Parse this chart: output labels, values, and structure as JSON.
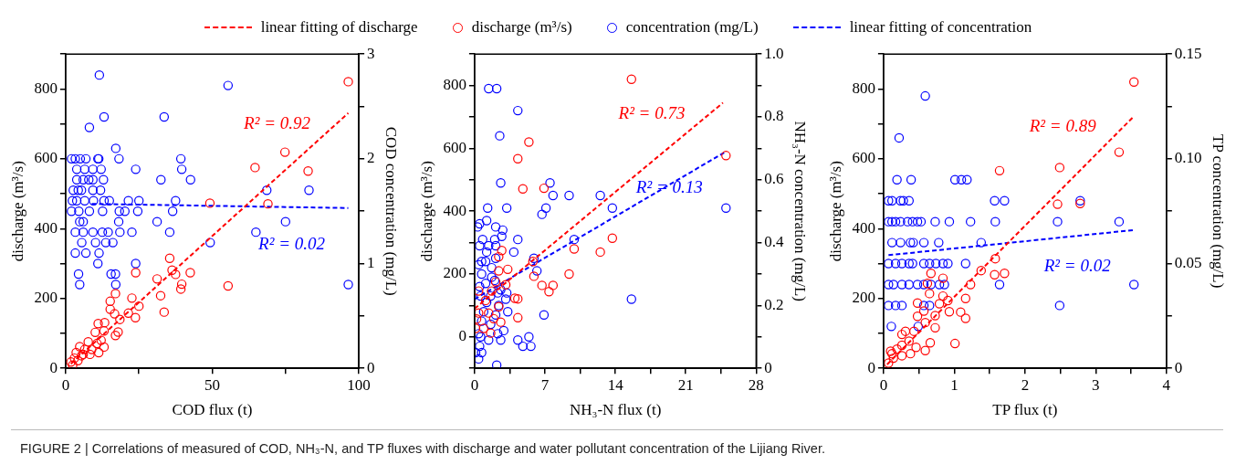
{
  "chart_data": [
    {
      "type": "scatter",
      "xlabel": "COD flux (t)",
      "ylabel": "discharge (m³/s)",
      "y2label": "COD concentration (mg/L)",
      "legend": "top",
      "line_style": "dashed",
      "xlim": [
        0,
        100
      ],
      "xticks": [
        0,
        {
          "value": 25,
          "label": null
        },
        50,
        {
          "value": 75,
          "label": null
        },
        100
      ],
      "ylim": [
        0,
        900
      ],
      "yticks": [
        0,
        {
          "value": 100,
          "label": null
        },
        200,
        {
          "value": 300,
          "label": null
        },
        400,
        {
          "value": 500,
          "label": null
        },
        600,
        {
          "value": 700,
          "label": null
        },
        800,
        {
          "value": 900,
          "label": null
        }
      ],
      "y2lim": [
        0,
        3
      ],
      "y2ticks": [
        0,
        {
          "value": 0.5,
          "label": null
        },
        1,
        {
          "value": 1.5,
          "label": null
        },
        2,
        {
          "value": 2.5,
          "label": null
        },
        3
      ],
      "series": [
        {
          "name": "linear fitting of discharge",
          "type": "line",
          "marker": "none",
          "color": "#ff0000",
          "x": [
            1.8,
            96.4
          ],
          "values": [
            13,
            731
          ]
        },
        {
          "name": "discharge (m³/s)",
          "marker": "circle",
          "color": "#ff0000",
          "x": [
            96.4,
            74.8,
            64.6,
            82.7,
            49.2,
            69.0,
            35.5,
            23.9,
            36.3,
            42.5,
            31.2,
            37.5,
            39.6,
            39.3,
            55.4,
            32.4,
            33.6,
            22.6,
            25.0,
            23.8,
            15.2,
            17.0,
            15.2,
            18.5,
            16.7,
            21.4,
            13.3,
            11.1,
            17.9,
            17.0,
            13.1,
            10.1,
            12.1,
            13.1,
            7.7,
            4.8,
            6.5,
            10.7,
            8.9,
            11.3,
            3.6,
            6.0,
            3.0,
            1.8,
            2.4,
            4.2,
            5.4,
            8.3
          ],
          "values": [
            821,
            619,
            575,
            565,
            473,
            471,
            315,
            274,
            281,
            274,
            256,
            269,
            241,
            227,
            236,
            208,
            161,
            201,
            178,
            145,
            169,
            214,
            192,
            140,
            156,
            158,
            131,
            128,
            104,
            94,
            107,
            103,
            80,
            61,
            76,
            62,
            54,
            71,
            54,
            45,
            45,
            40,
            29,
            18,
            9,
            22,
            36,
            40
          ]
        },
        {
          "name": "concentration (mg/L)",
          "marker": "circle",
          "axis": "y2",
          "color": "#0000ff",
          "x": [
            11.5,
            55.4,
            13.1,
            33.6,
            8.1,
            17.1,
            2.0,
            3.3,
            5.0,
            6.9,
            11.0,
            11.3,
            18.2,
            39.3,
            3.8,
            6.5,
            9.3,
            12.1,
            23.9,
            39.6,
            3.8,
            6.0,
            7.9,
            9.3,
            12.9,
            32.5,
            42.6,
            2.6,
            4.3,
            5.4,
            9.3,
            11.9,
            68.6,
            83.0,
            2.3,
            3.8,
            6.5,
            9.5,
            13.1,
            14.9,
            21.4,
            25.0,
            37.5,
            2.0,
            4.5,
            8.1,
            12.6,
            18.3,
            20.2,
            24.6,
            36.5,
            4.8,
            6.0,
            18.1,
            31.2,
            75.0,
            3.3,
            6.0,
            9.3,
            12.5,
            14.5,
            18.5,
            22.6,
            35.5,
            64.9,
            5.5,
            10.2,
            13.7,
            16.1,
            49.3,
            3.3,
            6.9,
            11.4,
            11.0,
            23.9,
            4.4,
            15.5,
            17.0,
            4.8,
            17.1,
            96.4
          ],
          "values": [
            2.8,
            2.7,
            2.4,
            2.4,
            2.3,
            2.1,
            2.0,
            2.0,
            2.0,
            2.0,
            2.0,
            2.0,
            2.0,
            2.0,
            1.9,
            1.9,
            1.9,
            1.9,
            1.9,
            1.9,
            1.8,
            1.8,
            1.8,
            1.8,
            1.8,
            1.8,
            1.8,
            1.7,
            1.7,
            1.7,
            1.7,
            1.7,
            1.7,
            1.7,
            1.6,
            1.6,
            1.6,
            1.6,
            1.6,
            1.6,
            1.6,
            1.6,
            1.6,
            1.5,
            1.5,
            1.5,
            1.5,
            1.5,
            1.5,
            1.5,
            1.5,
            1.4,
            1.4,
            1.4,
            1.4,
            1.4,
            1.3,
            1.3,
            1.3,
            1.3,
            1.3,
            1.3,
            1.3,
            1.3,
            1.3,
            1.2,
            1.2,
            1.2,
            1.2,
            1.2,
            1.1,
            1.1,
            1.1,
            1.0,
            1.0,
            0.9,
            0.9,
            0.9,
            0.8,
            0.8,
            0.8
          ]
        },
        {
          "name": "linear fitting of concentration",
          "type": "line",
          "marker": "none",
          "axis": "y2",
          "color": "#0000ff",
          "x": [
            8.9,
            96.4
          ],
          "values": [
            1.57,
            1.53
          ]
        }
      ],
      "annotations": [
        "R² = 0.92",
        "R² = 0.02",
        "FIGURE 2 | Correlations of measured of COD, NH₃-N, and TP fluxes with discharge and water pollutant concentration of the Lijiang River."
      ]
    },
    {
      "type": "scatter",
      "xlabel": "NH₃-N flux (t)",
      "ylabel": "discharge (m³/s)",
      "y2label": "NH₃-N concentration (mg/L)",
      "line_style": "dashed",
      "xlim": [
        0,
        28
      ],
      "xticks": [
        0,
        {
          "value": 3.5,
          "label": null
        },
        7,
        {
          "value": 10.5,
          "label": null
        },
        14,
        {
          "value": 17.5,
          "label": null
        },
        21,
        {
          "value": 24.5,
          "label": null
        },
        28
      ],
      "ylim": [
        -100,
        900
      ],
      "yticks": [
        {
          "value": -100,
          "label": null
        },
        0,
        {
          "value": 100,
          "label": null
        },
        200,
        {
          "value": 300,
          "label": null
        },
        400,
        {
          "value": 500,
          "label": null
        },
        600,
        {
          "value": 700,
          "label": null
        },
        800,
        {
          "value": 900,
          "label": null
        }
      ],
      "y2lim": [
        0,
        1
      ],
      "y2ticks": [
        0,
        {
          "value": 0.1,
          "label": null
        },
        0.2,
        {
          "value": 0.3,
          "label": null
        },
        0.4,
        {
          "value": 0.5,
          "label": null
        },
        0.6,
        {
          "value": 0.7,
          "label": null
        },
        0.8,
        {
          "value": 0.9,
          "label": null
        },
        {
          "value": 1,
          "label": "1.0"
        }
      ],
      "series": [
        {
          "type": "line",
          "marker": "none",
          "color": "#ff0000",
          "x": [
            0,
            24.7
          ],
          "values": [
            90,
            745
          ]
        },
        {
          "marker": "circle",
          "color": "#ff0000",
          "x": [
            15.6,
            25.0,
            5.4,
            4.3,
            4.8,
            6.9,
            2.7,
            3.3,
            13.7,
            12.5,
            9.9,
            9.4,
            5.8,
            5.9,
            6.7,
            7.8,
            7.4,
            4.0,
            4.3,
            4.3,
            2.4,
            2.4,
            2.1,
            3.1,
            1.7,
            0.4,
            1.1,
            2.4,
            1.4,
            0.4,
            1.9,
            2.6,
            0.2,
            0.9,
            1.6,
            0.1
          ],
          "values": [
            820,
            577,
            620,
            567,
            471,
            473,
            275,
            215,
            314,
            270,
            280,
            200,
            240,
            193,
            164,
            164,
            144,
            123,
            121,
            61,
            255,
            210,
            175,
            166,
            146,
            146,
            116,
            96,
            76,
            76,
            58,
            47,
            57,
            27,
            12,
            27
          ]
        },
        {
          "marker": "circle",
          "axis": "y2",
          "color": "#0000ff",
          "x": [
            1.4,
            2.2,
            4.3,
            2.5,
            2.6,
            7.5,
            7.8,
            9.4,
            12.5,
            13.7,
            7.1,
            6.7,
            1.3,
            3.2,
            25.0,
            0.5,
            0.3,
            1.2,
            2.1,
            2.8,
            2.7,
            2.0,
            0.8,
            4.3,
            0.5,
            1.4,
            2.1,
            1.2,
            3.9,
            9.9,
            2.1,
            5.9,
            6.2,
            0.4,
            0.7,
            1.7,
            1.1,
            1.7,
            0.7,
            2.0,
            1.1,
            0.5,
            2.6,
            3.2,
            2.3,
            1.6,
            3.1,
            0.6,
            1.2,
            2.4,
            3.3,
            0.9,
            15.6,
            6.9,
            2.1,
            0.7,
            1.6,
            2.9,
            0.4,
            2.3,
            1.4,
            2.6,
            4.3,
            5.4,
            4.8,
            5.6,
            0.6,
            0.5,
            0.7,
            0.1,
            0.4,
            2.2
          ],
          "values": [
            0.89,
            0.89,
            0.82,
            0.74,
            0.59,
            0.59,
            0.55,
            0.55,
            0.55,
            0.51,
            0.51,
            0.49,
            0.51,
            0.51,
            0.51,
            0.46,
            0.45,
            0.47,
            0.45,
            0.44,
            0.42,
            0.41,
            0.41,
            0.41,
            0.39,
            0.39,
            0.39,
            0.37,
            0.37,
            0.41,
            0.35,
            0.35,
            0.31,
            0.33,
            0.34,
            0.32,
            0.34,
            0.29,
            0.3,
            0.28,
            0.27,
            0.26,
            0.25,
            0.24,
            0.24,
            0.23,
            0.22,
            0.23,
            0.21,
            0.2,
            0.18,
            0.18,
            0.22,
            0.17,
            0.17,
            0.15,
            0.14,
            0.12,
            0.11,
            0.11,
            0.09,
            0.09,
            0.09,
            0.1,
            0.07,
            0.07,
            0.1,
            0.07,
            0.05,
            0.05,
            0.03,
            0.01
          ]
        },
        {
          "type": "line",
          "marker": "none",
          "axis": "y2",
          "color": "#0000ff",
          "x": [
            0,
            25
          ],
          "values": [
            0.22,
            0.69
          ]
        }
      ],
      "annotations": [
        "R² = 0.73",
        "R² = 0.13"
      ]
    },
    {
      "type": "scatter",
      "xlabel": "TP flux (t)",
      "ylabel": "discharge (m³/s)",
      "y2label": "TP concentration (mg/L)",
      "line_style": "dashed",
      "xlim": [
        0,
        4
      ],
      "xticks": [
        0,
        {
          "value": 0.5,
          "label": null
        },
        1,
        {
          "value": 1.5,
          "label": null
        },
        2,
        {
          "value": 2.5,
          "label": null
        },
        3,
        {
          "value": 3.5,
          "label": null
        },
        4
      ],
      "ylim": [
        0,
        900
      ],
      "yticks": [
        0,
        {
          "value": 100,
          "label": null
        },
        200,
        {
          "value": 300,
          "label": null
        },
        400,
        {
          "value": 500,
          "label": null
        },
        600,
        {
          "value": 700,
          "label": null
        },
        800,
        {
          "value": 900,
          "label": null
        }
      ],
      "y2lim": [
        0,
        0.15
      ],
      "y2ticks": [
        0,
        {
          "value": 0.025,
          "label": null
        },
        0.05,
        {
          "value": 0.075,
          "label": null
        },
        {
          "value": 0.1,
          "label": "0.10"
        },
        {
          "value": 0.125,
          "label": null
        },
        0.15
      ],
      "series": [
        {
          "type": "line",
          "marker": "none",
          "color": "#ff0000",
          "x": [
            0.05,
            3.54
          ],
          "values": [
            11,
            722
          ]
        },
        {
          "marker": "circle",
          "color": "#ff0000",
          "x": [
            3.54,
            3.33,
            2.49,
            1.64,
            2.46,
            2.78,
            1.58,
            1.71,
            1.57,
            1.38,
            1.23,
            1.16,
            1.16,
            1.09,
            1.01,
            0.93,
            0.91,
            0.84,
            0.84,
            0.67,
            0.65,
            0.62,
            0.73,
            0.79,
            0.73,
            0.57,
            0.48,
            0.48,
            0.59,
            0.59,
            0.66,
            0.46,
            0.43,
            0.31,
            0.26,
            0.36,
            0.26,
            0.19,
            0.1,
            0.38,
            0.26,
            0.14,
            0.07,
            0.12
          ],
          "values": [
            820,
            619,
            575,
            566,
            470,
            472,
            314,
            272,
            268,
            280,
            240,
            200,
            143,
            161,
            71,
            162,
            194,
            258,
            207,
            272,
            214,
            243,
            151,
            185,
            116,
            164,
            187,
            149,
            131,
            51,
            73,
            60,
            106,
            106,
            97,
            78,
            66,
            55,
            49,
            42,
            36,
            29,
            15,
            42
          ]
        },
        {
          "marker": "circle",
          "axis": "y2",
          "color": "#0000ff",
          "x": [
            0.59,
            0.22,
            0.19,
            0.39,
            1.01,
            1.1,
            1.18,
            0.07,
            0.12,
            0.24,
            0.28,
            0.36,
            1.57,
            1.71,
            2.78,
            0.07,
            0.12,
            0.17,
            0.24,
            0.34,
            0.41,
            0.48,
            0.53,
            0.73,
            0.93,
            1.23,
            1.58,
            2.46,
            3.33,
            0.12,
            0.24,
            0.38,
            0.42,
            0.57,
            0.78,
            1.38,
            0.07,
            0.17,
            0.26,
            0.36,
            0.41,
            0.57,
            0.65,
            0.74,
            0.84,
            0.91,
            1.16,
            0.07,
            0.14,
            0.26,
            0.36,
            0.48,
            0.57,
            0.67,
            0.79,
            0.86,
            1.64,
            3.54,
            0.07,
            0.17,
            0.26,
            0.57,
            0.65,
            2.49,
            0.11,
            0.49
          ],
          "values": [
            0.13,
            0.11,
            0.09,
            0.09,
            0.09,
            0.09,
            0.09,
            0.08,
            0.08,
            0.08,
            0.08,
            0.08,
            0.08,
            0.08,
            0.08,
            0.07,
            0.07,
            0.07,
            0.07,
            0.07,
            0.07,
            0.07,
            0.07,
            0.07,
            0.07,
            0.07,
            0.07,
            0.07,
            0.07,
            0.06,
            0.06,
            0.06,
            0.06,
            0.06,
            0.06,
            0.06,
            0.05,
            0.05,
            0.05,
            0.05,
            0.05,
            0.05,
            0.05,
            0.05,
            0.05,
            0.05,
            0.05,
            0.04,
            0.04,
            0.04,
            0.04,
            0.04,
            0.04,
            0.04,
            0.04,
            0.04,
            0.04,
            0.04,
            0.03,
            0.03,
            0.03,
            0.03,
            0.03,
            0.03,
            0.02,
            0.02
          ]
        },
        {
          "type": "line",
          "marker": "none",
          "axis": "y2",
          "color": "#0000ff",
          "x": [
            0.07,
            3.54
          ],
          "values": [
            0.054,
            0.066
          ]
        }
      ],
      "annotations": [
        "R² = 0.89",
        "R² = 0.02"
      ]
    }
  ]
}
